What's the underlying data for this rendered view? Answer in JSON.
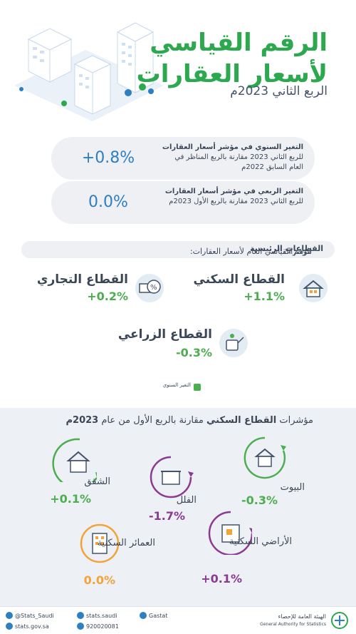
{
  "header": {
    "title_line1": "الرقم القياسي",
    "title_line2": "لأسعار العقارات",
    "subtitle": "الربع الثاني 2023م"
  },
  "stats": [
    {
      "bold": "التغير السنوي في مؤشر أسعار العقارات",
      "text": "للربع الثاني 2023 مقارنة بالربع المناظر في العام السابق 2022م",
      "value": "+0.8%"
    },
    {
      "bold": "التغير الربعي في مؤشر أسعار العقارات",
      "text": "للربع الثاني 2023 مقارنة بالربع الأول 2023م",
      "value": "0.0%"
    }
  ],
  "sectors_heading": {
    "prefix": "مؤشرات ",
    "bold": "القطاعات الرئيسية",
    "suffix": " للرقم القياسي العام لأسعار العقارات:"
  },
  "sectors": [
    {
      "name": "القطاع السكني",
      "value": "+1.1%",
      "icon": "house-icon"
    },
    {
      "name": "القطاع التجاري",
      "value": "+0.2%",
      "icon": "money-percent-icon"
    },
    {
      "name": "القطاع الزراعي",
      "value": "-0.3%",
      "icon": "watering-can-icon"
    }
  ],
  "legend": {
    "label": "التغير السنوي",
    "color": "#4cae50"
  },
  "residential_heading": {
    "prefix": "مؤشرات ",
    "bold": "القطاع السكني",
    "suffix": " مقارنة بالربع الأول من عام ",
    "year": "2023م"
  },
  "residential": [
    {
      "name": "البيوت",
      "value": "-0.3%",
      "color": "#4cae50",
      "icon": "house-icon"
    },
    {
      "name": "الفلل",
      "value": "-1.7%",
      "color": "#8b3a93",
      "icon": "villa-icon"
    },
    {
      "name": "الشقق",
      "value": "+0.1%",
      "color": "#4cae50",
      "icon": "apartment-icon"
    },
    {
      "name": "الأراضي السكنية",
      "value": "+0.1%",
      "color": "#8b3a93",
      "icon": "land-map-icon"
    },
    {
      "name": "العمائر السكنية",
      "value": "0.0%",
      "color": "#f2a33a",
      "icon": "building-icon"
    }
  ],
  "footer": {
    "twitter": "@Stats_Saudi",
    "website": "stats.gov.sa",
    "social": "stats.saudi",
    "phone": "920020081",
    "linkedin": "Gastat",
    "org_ar": "الهيئة العامة للإحصاء",
    "org_en": "General Authority for Statistics"
  },
  "colors": {
    "green": "#2ca84e",
    "blue": "#2d7fc1",
    "purple": "#8b3a93",
    "orange": "#f2a33a"
  }
}
